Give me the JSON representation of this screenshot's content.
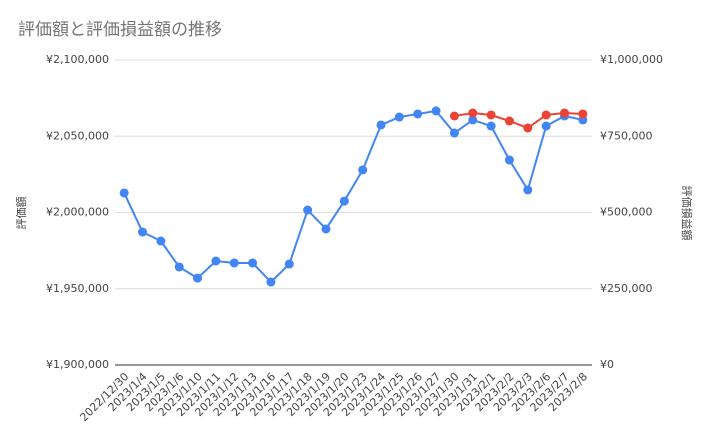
{
  "chart_data": {
    "type": "line",
    "title": "評価額と評価損益額の推移",
    "ylabel": "評価額",
    "y2label": "評価損益額",
    "categories": [
      "2022/12/30",
      "2023/1/4",
      "2023/1/5",
      "2023/1/6",
      "2023/1/10",
      "2023/1/11",
      "2023/1/12",
      "2023/1/13",
      "2023/1/16",
      "2023/1/17",
      "2023/1/18",
      "2023/1/19",
      "2023/1/20",
      "2023/1/23",
      "2023/1/24",
      "2023/1/25",
      "2023/1/26",
      "2023/1/27",
      "2023/1/30",
      "2023/1/31",
      "2023/2/1",
      "2023/2/2",
      "2023/2/3",
      "2023/2/6",
      "2023/2/7",
      "2023/2/8"
    ],
    "series": [
      {
        "name": "評価額",
        "color": "#4285f4",
        "axis": "y",
        "values": [
          2012800,
          1987200,
          1981300,
          1964300,
          1957000,
          1968200,
          1966900,
          1966900,
          1954400,
          1966200,
          2001600,
          1989200,
          2007500,
          2027900,
          2057400,
          2062600,
          2064600,
          2066600,
          2052100,
          2060700,
          2056700,
          2034400,
          2014800,
          2056700,
          2063300,
          2060700
        ]
      },
      {
        "name": "評価損益額",
        "color": "#ea4335",
        "axis": "y2",
        "values": [
          null,
          null,
          null,
          null,
          null,
          null,
          null,
          null,
          null,
          null,
          null,
          null,
          null,
          null,
          null,
          null,
          null,
          null,
          816400,
          826200,
          819700,
          800000,
          777000,
          819700,
          826200,
          823000
        ]
      }
    ],
    "ylim": [
      1900000,
      2100000
    ],
    "yticks": [
      {
        "value": 1900000,
        "label": "¥1,900,000"
      },
      {
        "value": 1950000,
        "label": "¥1,950,000"
      },
      {
        "value": 2000000,
        "label": "¥2,000,000"
      },
      {
        "value": 2050000,
        "label": "¥2,050,000"
      },
      {
        "value": 2100000,
        "label": "¥2,100,000"
      }
    ],
    "y2lim": [
      0,
      1000000
    ],
    "y2ticks": [
      {
        "value": 0,
        "label": "¥0"
      },
      {
        "value": 250000,
        "label": "¥250,000"
      },
      {
        "value": 500000,
        "label": "¥500,000"
      },
      {
        "value": 750000,
        "label": "¥750,000"
      },
      {
        "value": 1000000,
        "label": "¥1,000,000"
      }
    ],
    "grid": true
  }
}
